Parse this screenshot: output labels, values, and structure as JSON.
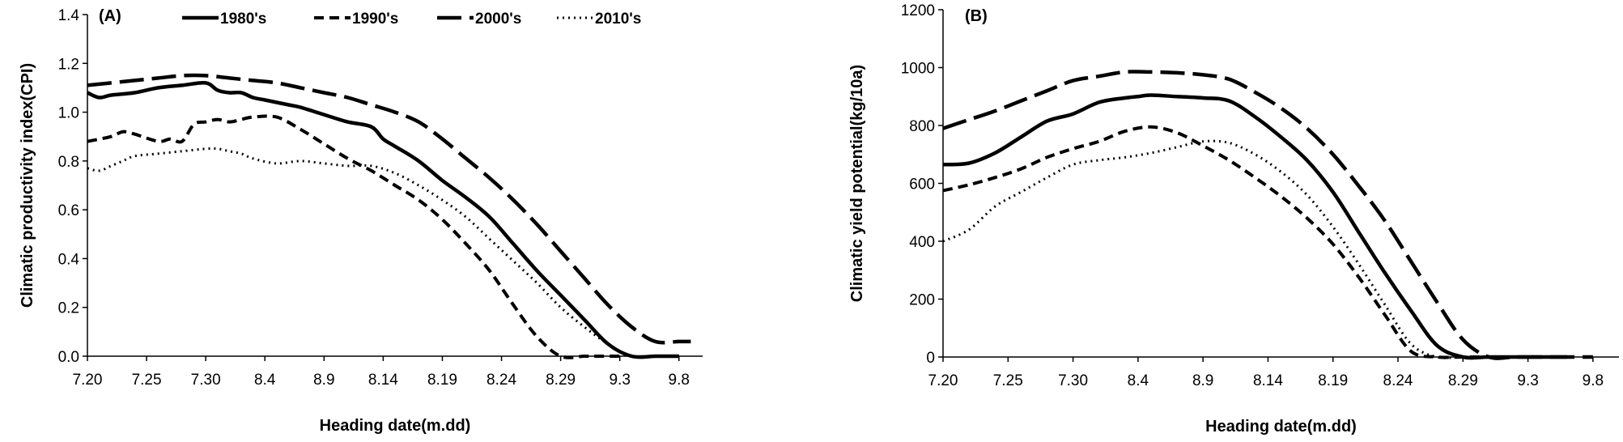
{
  "legend": [
    "1980's",
    "1990's",
    "2000's",
    "2010's"
  ],
  "styles": {
    "1980's": {
      "dash": "",
      "width": 4.5
    },
    "1990's": {
      "dash": "12 7",
      "width": 4
    },
    "2000's": {
      "dash": "30 10",
      "width": 4.5
    },
    "2010's": {
      "dash": "2 5",
      "width": 3
    }
  },
  "chart_data": [
    {
      "type": "line",
      "panel_label": "(A)",
      "xlabel": "Heading date(m.dd)",
      "ylabel": "Climatic productivity index(CPI)",
      "x_ticks": [
        "7.20",
        "7.25",
        "7.30",
        "8.4",
        "8.9",
        "8.14",
        "8.19",
        "8.24",
        "8.29",
        "9.3",
        "9.8"
      ],
      "x_range": [
        0,
        52
      ],
      "ylim": [
        0,
        1.4
      ],
      "y_ticks": [
        "0.0",
        "0.2",
        "0.4",
        "0.6",
        "0.8",
        "1.0",
        "1.2",
        "1.4"
      ],
      "y_tick_values": [
        0,
        0.2,
        0.4,
        0.6,
        0.8,
        1.0,
        1.2,
        1.4
      ],
      "series": [
        {
          "name": "1980's",
          "x": [
            0,
            1,
            2,
            4,
            6,
            8,
            10,
            11,
            12,
            13,
            14,
            15,
            16,
            17,
            18,
            20,
            22,
            24,
            25,
            26,
            28,
            30,
            32,
            34,
            36,
            38,
            40,
            42,
            44,
            46,
            48,
            49,
            50
          ],
          "y": [
            1.08,
            1.06,
            1.07,
            1.08,
            1.1,
            1.11,
            1.12,
            1.09,
            1.08,
            1.08,
            1.06,
            1.05,
            1.04,
            1.03,
            1.02,
            0.99,
            0.96,
            0.94,
            0.89,
            0.86,
            0.8,
            0.72,
            0.65,
            0.57,
            0.46,
            0.35,
            0.25,
            0.15,
            0.05,
            0.0,
            0.0,
            0.0,
            0.0
          ]
        },
        {
          "name": "1990's",
          "x": [
            0,
            2,
            3,
            4,
            6,
            7,
            8,
            9,
            10,
            11,
            12,
            13,
            14,
            16,
            18,
            20,
            22,
            24,
            26,
            28,
            30,
            32,
            34,
            36,
            38,
            40,
            42,
            43,
            44,
            45
          ],
          "y": [
            0.88,
            0.9,
            0.92,
            0.91,
            0.88,
            0.89,
            0.88,
            0.95,
            0.96,
            0.97,
            0.96,
            0.97,
            0.98,
            0.98,
            0.93,
            0.87,
            0.81,
            0.76,
            0.7,
            0.64,
            0.56,
            0.46,
            0.35,
            0.21,
            0.08,
            0.0,
            0.0,
            0.0,
            0.0,
            0.0
          ]
        },
        {
          "name": "2000's",
          "x": [
            0,
            2,
            4,
            6,
            8,
            10,
            12,
            14,
            16,
            18,
            20,
            22,
            24,
            26,
            28,
            30,
            32,
            34,
            36,
            38,
            40,
            42,
            44,
            46,
            48,
            50,
            51
          ],
          "y": [
            1.11,
            1.12,
            1.13,
            1.14,
            1.15,
            1.15,
            1.14,
            1.13,
            1.12,
            1.1,
            1.08,
            1.06,
            1.03,
            1.0,
            0.96,
            0.89,
            0.81,
            0.73,
            0.64,
            0.54,
            0.43,
            0.32,
            0.21,
            0.12,
            0.06,
            0.06,
            0.06
          ]
        },
        {
          "name": "2010's",
          "x": [
            0,
            1,
            2,
            3,
            4,
            6,
            8,
            10,
            11,
            12,
            13,
            14,
            16,
            18,
            20,
            22,
            24,
            26,
            28,
            30,
            32,
            34,
            36,
            38,
            40,
            42,
            44,
            46,
            48,
            50
          ],
          "y": [
            0.77,
            0.76,
            0.78,
            0.8,
            0.82,
            0.83,
            0.84,
            0.85,
            0.85,
            0.84,
            0.83,
            0.81,
            0.79,
            0.8,
            0.79,
            0.78,
            0.78,
            0.75,
            0.7,
            0.64,
            0.57,
            0.48,
            0.39,
            0.3,
            0.2,
            0.12,
            0.05,
            0.0,
            0.0,
            0.0
          ]
        }
      ]
    },
    {
      "type": "line",
      "panel_label": "(B)",
      "xlabel": "Heading date(m.dd)",
      "ylabel": "Climatic yield potential(kg/10a)",
      "x_ticks": [
        "7.20",
        "7.25",
        "7.30",
        "8.4",
        "8.9",
        "8.14",
        "8.19",
        "8.24",
        "8.29",
        "9.3",
        "9.8"
      ],
      "x_range": [
        0,
        52
      ],
      "ylim": [
        0,
        1200
      ],
      "y_ticks": [
        "0",
        "200",
        "400",
        "600",
        "800",
        "1000",
        "1200"
      ],
      "y_tick_values": [
        0,
        200,
        400,
        600,
        800,
        1000,
        1200
      ],
      "series": [
        {
          "name": "1980's",
          "x": [
            0,
            2,
            4,
            6,
            8,
            10,
            12,
            14,
            15,
            16,
            18,
            20,
            22,
            24,
            26,
            28,
            30,
            32,
            34,
            36,
            38,
            40,
            42,
            44,
            46,
            48
          ],
          "y": [
            665,
            670,
            705,
            760,
            815,
            840,
            880,
            895,
            900,
            905,
            900,
            895,
            885,
            830,
            760,
            680,
            570,
            430,
            290,
            160,
            40,
            0,
            0,
            0,
            0,
            0
          ]
        },
        {
          "name": "1990's",
          "x": [
            0,
            2,
            4,
            6,
            8,
            10,
            12,
            14,
            16,
            18,
            20,
            22,
            24,
            26,
            28,
            30,
            32,
            34,
            36,
            38,
            40,
            42
          ],
          "y": [
            575,
            595,
            620,
            650,
            690,
            720,
            745,
            780,
            795,
            775,
            730,
            680,
            620,
            555,
            480,
            390,
            275,
            145,
            20,
            0,
            0,
            0
          ]
        },
        {
          "name": "2000's",
          "x": [
            0,
            2,
            4,
            6,
            8,
            10,
            12,
            14,
            16,
            18,
            20,
            22,
            24,
            26,
            28,
            30,
            32,
            34,
            36,
            38,
            40,
            42,
            44,
            46,
            48,
            50
          ],
          "y": [
            790,
            820,
            850,
            885,
            920,
            955,
            970,
            985,
            985,
            982,
            975,
            960,
            915,
            860,
            790,
            700,
            590,
            470,
            330,
            190,
            60,
            0,
            0,
            0,
            0,
            0
          ]
        },
        {
          "name": "2010's",
          "x": [
            0,
            2,
            4,
            6,
            8,
            10,
            12,
            14,
            16,
            18,
            20,
            22,
            24,
            26,
            28,
            30,
            32,
            34,
            36,
            38,
            40,
            42,
            44
          ],
          "y": [
            400,
            440,
            520,
            570,
            620,
            665,
            680,
            690,
            705,
            725,
            745,
            740,
            700,
            640,
            560,
            450,
            320,
            180,
            45,
            0,
            0,
            0,
            0
          ]
        }
      ]
    }
  ]
}
